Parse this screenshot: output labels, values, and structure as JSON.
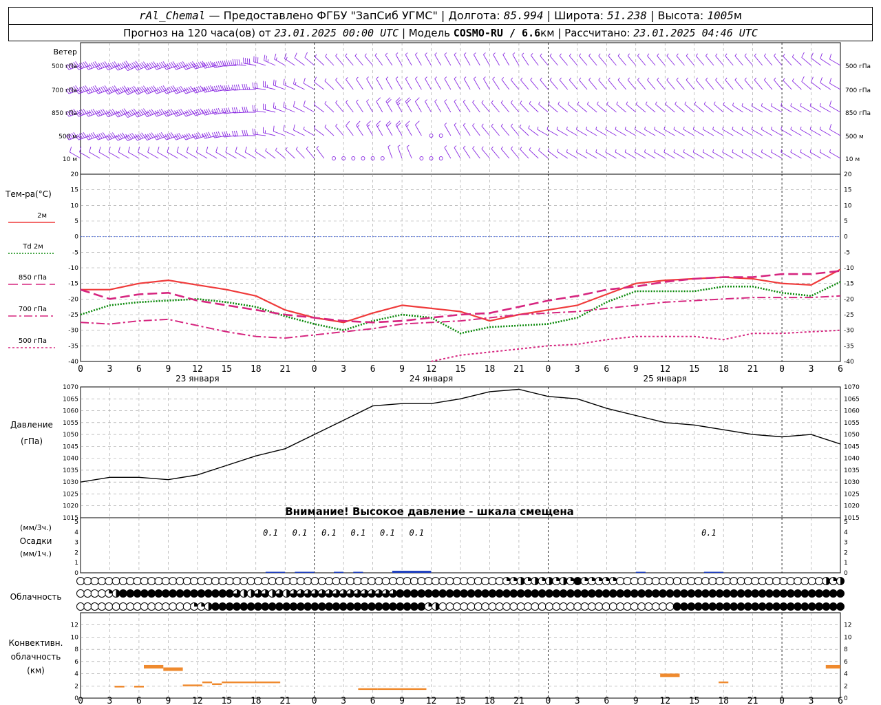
{
  "header": {
    "station": "rAl_Chemal",
    "provider": "Предоставлено ФГБУ \"ЗапСиб УГМС\"",
    "lon_label": "Долгота:",
    "lon": "85.994",
    "lat_label": "Широта:",
    "lat": "51.238",
    "alt_label": "Высота:",
    "alt": "1005",
    "alt_unit": "м",
    "forecast_prefix": "Прогноз на 120 часа(ов) от",
    "forecast_time": "23.01.2025 00:00 UTC",
    "model_label": "Модель",
    "model": "COSMO-RU / 6.6",
    "model_unit": "км",
    "calc_label": "Рассчитано:",
    "calc_time": "23.01.2025 04:46 UTC"
  },
  "labels": {
    "wind_title": "Ветер",
    "wind_levels": [
      "500 гПа",
      "700 гПа",
      "850 гПа",
      "500 м",
      "10  м"
    ],
    "temp_title": "Тем-ра(°C)",
    "temp_legend": [
      {
        "text": "2м",
        "color": "#ef3a3a",
        "dash": "solid"
      },
      {
        "text": "Td  2м",
        "color": "#0b8a0b",
        "dash": "dotted"
      },
      {
        "text": "850 гПа",
        "color": "#d6257f",
        "dash": "dash"
      },
      {
        "text": "700 гПа",
        "color": "#d6257f",
        "dash": "dashdot"
      },
      {
        "text": "500 гПа",
        "color": "#d6257f",
        "dash": "dot"
      }
    ],
    "pressure_title": "Давление",
    "pressure_unit": "(гПа)",
    "pressure_warning": "Внимание! Высокое давление - шкала смещена",
    "precip_unit_top": "(мм/3ч.)",
    "precip_title": "Осадки",
    "precip_unit_bottom": "(мм/1ч.)",
    "cloud_title": "Облачность",
    "conv_title_1": "Конвективн.",
    "conv_title_2": "облачность",
    "conv_unit": "(км)",
    "days": [
      "23 января",
      "24 января",
      "25 января"
    ]
  },
  "colors": {
    "t2m": "#ef3a3a",
    "td2m": "#0b8a0b",
    "upper": "#d6257f",
    "wind": "#8a2be2",
    "pressure": "#000000",
    "precip": "#1f3fbf",
    "conv": "#ef8a2e",
    "zero_line": "#4f6fdf"
  },
  "chart_data": {
    "type": "line",
    "x_hours": [
      0,
      3,
      6,
      9,
      12,
      15,
      18,
      21,
      24,
      27,
      30,
      33,
      36,
      39,
      42,
      45,
      48,
      51,
      54,
      57,
      60,
      63,
      66,
      69,
      72,
      75,
      78
    ],
    "x_tick_labels": [
      "0",
      "3",
      "6",
      "9",
      "12",
      "15",
      "18",
      "21",
      "0",
      "3",
      "6",
      "9",
      "12",
      "15",
      "18",
      "21",
      "0",
      "3",
      "6",
      "9",
      "12",
      "15",
      "18",
      "21",
      "0",
      "3",
      "6"
    ],
    "temperature": {
      "ylim": [
        -40,
        20
      ],
      "yticks": [
        20,
        15,
        10,
        5,
        0,
        -5,
        -10,
        -15,
        -20,
        -25,
        -30,
        -35,
        -40
      ],
      "series": [
        {
          "name": "2м",
          "values": [
            -17,
            -17,
            -15,
            -14,
            -15.5,
            -17,
            -19,
            -23.5,
            -26,
            -27.5,
            -24.5,
            -22,
            -23,
            -24,
            -27,
            -25,
            -23.5,
            -22,
            -18.5,
            -15,
            -14,
            -13.5,
            -13,
            -13.5,
            -15,
            -15.5,
            -10.5
          ]
        },
        {
          "name": "Td  2м",
          "values": [
            -25,
            -22,
            -21,
            -20.5,
            -20,
            -21,
            -22.5,
            -25.5,
            -28,
            -30,
            -27,
            -25,
            -26,
            -31,
            -29,
            -28.5,
            -28,
            -26,
            -21,
            -17.5,
            -17.5,
            -17.5,
            -16,
            -16,
            -18,
            -19,
            -14.5
          ]
        },
        {
          "name": "850 гПа",
          "values": [
            -17,
            -20,
            -18.5,
            -18,
            -20.5,
            -22,
            -23.5,
            -25,
            -26,
            -27,
            -27.5,
            -27,
            -26,
            -25,
            -24.5,
            -22.5,
            -20.5,
            -19,
            -17,
            -16,
            -14.5,
            -13.5,
            -13,
            -13,
            -12,
            -12,
            -11
          ]
        },
        {
          "name": "700 гПа",
          "values": [
            -27.5,
            -28,
            -27,
            -26.5,
            -28.5,
            -30.5,
            -32,
            -32.5,
            -31.5,
            -30.5,
            -29.5,
            -28,
            -27.5,
            -27,
            -26,
            -25,
            -24.5,
            -24,
            -23,
            -22,
            -21,
            -20.5,
            -20,
            -19.5,
            -19.5,
            -19.5,
            -19
          ]
        },
        {
          "name": "500 гПа",
          "values": [
            null,
            null,
            null,
            null,
            null,
            null,
            null,
            null,
            null,
            null,
            null,
            null,
            -40,
            -38,
            -37,
            -36,
            -35,
            -34.5,
            -33,
            -32,
            -32,
            -32,
            -33,
            -31,
            -31,
            -30.5,
            -30
          ]
        }
      ]
    },
    "pressure": {
      "ylim": [
        1015,
        1070
      ],
      "yticks": [
        1070,
        1065,
        1060,
        1055,
        1050,
        1045,
        1040,
        1035,
        1030,
        1025,
        1020,
        1015
      ],
      "values": [
        1030,
        1032,
        1032,
        1031,
        1033,
        1037,
        1041,
        1044,
        1050,
        1056,
        1062,
        1063,
        1063,
        1065,
        1068,
        1069,
        1066,
        1065,
        1061,
        1058,
        1055,
        1054,
        1052,
        1050,
        1049,
        1050,
        1046
      ]
    },
    "precipitation": {
      "ylim": [
        0,
        5
      ],
      "yticks": [
        5,
        4,
        3,
        2,
        1,
        0
      ],
      "labels": [
        {
          "hour": 19.5,
          "text": "0.1"
        },
        {
          "hour": 22.5,
          "text": "0.1"
        },
        {
          "hour": 25.5,
          "text": "0.1"
        },
        {
          "hour": 28.5,
          "text": "0.1"
        },
        {
          "hour": 31.5,
          "text": "0.1"
        },
        {
          "hour": 34.5,
          "text": "0.1"
        },
        {
          "hour": 64.5,
          "text": "0.1"
        }
      ],
      "bars": [
        {
          "start": 19,
          "end": 21,
          "value": 0.1
        },
        {
          "start": 22,
          "end": 24,
          "value": 0.1
        },
        {
          "start": 26,
          "end": 27,
          "value": 0.1
        },
        {
          "start": 28,
          "end": 29,
          "value": 0.1
        },
        {
          "start": 32,
          "end": 36,
          "value": 0.2
        },
        {
          "start": 57,
          "end": 58,
          "value": 0.1
        },
        {
          "start": 64,
          "end": 66,
          "value": 0.1
        }
      ]
    },
    "convective": {
      "ylim": [
        0,
        14
      ],
      "yticks": [
        12,
        10,
        8,
        6,
        4,
        2,
        0
      ],
      "segments": [
        {
          "start": 3.5,
          "end": 4.5,
          "height": 1.8
        },
        {
          "start": 5.5,
          "end": 6.5,
          "height": 1.8
        },
        {
          "start": 6.5,
          "end": 8.5,
          "height": 5.2
        },
        {
          "start": 8.5,
          "end": 10.5,
          "height": 4.8
        },
        {
          "start": 10.5,
          "end": 12.5,
          "height": 2.0
        },
        {
          "start": 12.5,
          "end": 13.5,
          "height": 2.5
        },
        {
          "start": 13.5,
          "end": 14.5,
          "height": 2.2
        },
        {
          "start": 14.5,
          "end": 20.5,
          "height": 2.5
        },
        {
          "start": 28.5,
          "end": 30.5,
          "height": 1.4
        },
        {
          "start": 30.5,
          "end": 35.5,
          "height": 1.4
        },
        {
          "start": 59.5,
          "end": 61.5,
          "height": 3.8
        },
        {
          "start": 65.5,
          "end": 66.5,
          "height": 2.5
        },
        {
          "start": 76.5,
          "end": 78,
          "height": 5.2
        }
      ]
    },
    "cloud_rows": [
      "000000000000000000000000000000000000000000000000000000000000112121212141111100000000000000000000000000000212",
      "000012444444444444444432233232333333333333333444444444444444444444444444444444444444444444444444444444444444",
      "000000000000000011244444444444444444444444444444412000000000000000000000000000000000444444444444444444444444"
    ],
    "wind": {
      "levels": [
        "500 гПа",
        "700 гПа",
        "850 гПа",
        "500 м",
        "10  м"
      ],
      "direction_deg": {
        "500 гПа": [
          250,
          250,
          245,
          250,
          250,
          260,
          280,
          300,
          310,
          320,
          320,
          330,
          330,
          330,
          330,
          330,
          320,
          320,
          320,
          320,
          320,
          320,
          320,
          320,
          320,
          310,
          300
        ],
        "700 гПа": [
          250,
          250,
          245,
          250,
          250,
          260,
          270,
          290,
          300,
          320,
          330,
          330,
          330,
          330,
          330,
          320,
          320,
          320,
          320,
          320,
          320,
          320,
          320,
          320,
          320,
          310,
          300
        ],
        "850 гПа": [
          250,
          250,
          245,
          250,
          250,
          260,
          270,
          290,
          300,
          320,
          330,
          330,
          330,
          330,
          320,
          320,
          310,
          310,
          310,
          310,
          310,
          310,
          310,
          300,
          300,
          300,
          300
        ],
        "500 м": [
          250,
          250,
          245,
          250,
          250,
          260,
          270,
          290,
          300,
          320,
          330,
          330,
          330,
          330,
          320,
          320,
          300,
          300,
          300,
          300,
          300,
          300,
          300,
          300,
          300,
          300,
          300
        ],
        "10  м": [
          300,
          300,
          300,
          300,
          300,
          300,
          300,
          310,
          320,
          330,
          340,
          340,
          330,
          330,
          320,
          320,
          310,
          300,
          300,
          300,
          300,
          300,
          300,
          300,
          300,
          300,
          300
        ]
      },
      "speed_ms": {
        "500 гПа": [
          30,
          32,
          35,
          30,
          30,
          28,
          20,
          8,
          4,
          3,
          3,
          3,
          3,
          3,
          3,
          3,
          3,
          3,
          3,
          3,
          3,
          3,
          3,
          3,
          3,
          4,
          5
        ],
        "700 гПа": [
          30,
          30,
          32,
          30,
          28,
          25,
          18,
          10,
          5,
          3,
          3,
          3,
          3,
          3,
          3,
          3,
          3,
          3,
          3,
          3,
          3,
          3,
          3,
          3,
          3,
          4,
          5
        ],
        "850 гПа": [
          28,
          28,
          30,
          28,
          25,
          22,
          15,
          8,
          4,
          3,
          3,
          12,
          3,
          3,
          3,
          3,
          3,
          3,
          3,
          3,
          3,
          3,
          3,
          3,
          3,
          3,
          4
        ],
        "500 м": [
          25,
          25,
          28,
          25,
          22,
          20,
          14,
          6,
          3,
          3,
          8,
          10,
          2,
          3,
          3,
          3,
          3,
          3,
          3,
          3,
          3,
          3,
          3,
          3,
          3,
          3,
          4
        ],
        "10  м": [
          4,
          4,
          4,
          4,
          4,
          4,
          4,
          3,
          3,
          2,
          2,
          3,
          2,
          3,
          3,
          3,
          3,
          3,
          3,
          3,
          3,
          3,
          3,
          3,
          3,
          3,
          3
        ]
      }
    }
  }
}
